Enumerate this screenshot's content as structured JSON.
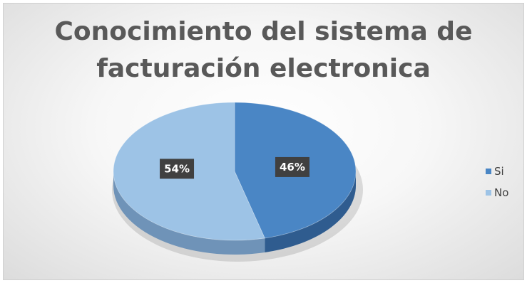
{
  "chart_data": {
    "type": "pie",
    "title_lines": [
      "Conocimiento del sistema de",
      "facturación electronica"
    ],
    "categories": [
      "Si",
      "No"
    ],
    "values": [
      46,
      54
    ],
    "data_labels": [
      "46%",
      "54%"
    ],
    "colors": [
      "#4a86c5",
      "#9dc3e6"
    ],
    "side_colors": [
      "#2f5c8f",
      "#6f93b8"
    ],
    "style": "3d",
    "legend_position": "right"
  }
}
